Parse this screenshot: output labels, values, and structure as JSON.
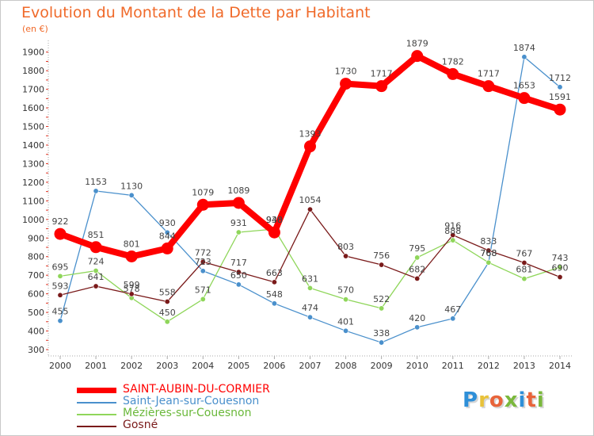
{
  "title": "Evolution du Montant de la Dette par Habitant",
  "unit": "(en €)",
  "logo": {
    "text": "Proxiti",
    "colors": [
      "#2e8fd8",
      "#e8c23a",
      "#e8643a",
      "#7ab83c",
      "#2e8fd8",
      "#e8643a",
      "#7ab83c"
    ]
  },
  "chart_data": {
    "type": "line",
    "title": "Evolution du Montant de la Dette par Habitant",
    "ylabel": "(en €)",
    "xlabel": "",
    "x": [
      "2000",
      "2001",
      "2002",
      "2003",
      "2004",
      "2005",
      "2006",
      "2007",
      "2008",
      "2009",
      "2010",
      "2011",
      "2012",
      "2013",
      "2014"
    ],
    "y_ticks": [
      300,
      400,
      500,
      600,
      700,
      800,
      900,
      1000,
      1100,
      1200,
      1300,
      1400,
      1500,
      1600,
      1700,
      1800,
      1900
    ],
    "ylim": [
      300,
      1950
    ],
    "grid": false,
    "legend_position": "bottom-left",
    "series": [
      {
        "name": "SAINT-AUBIN-DU-CORMIER",
        "color": "#ff0000",
        "emphasis": true,
        "values": [
          922,
          851,
          801,
          844,
          1079,
          1089,
          930,
          1393,
          1730,
          1717,
          1879,
          1782,
          1717,
          1653,
          1591
        ],
        "labels": [
          "922",
          "851",
          "801",
          "844",
          "1079",
          "1089",
          "930",
          "1393",
          "1730",
          "1717",
          "1879",
          "1782",
          "1717",
          "1653",
          "1591"
        ]
      },
      {
        "name": "Saint-Jean-sur-Couesnon",
        "color": "#4a90cc",
        "emphasis": false,
        "values": [
          455,
          1153,
          1130,
          930,
          723,
          650,
          548,
          474,
          401,
          338,
          420,
          467,
          768,
          1874,
          1712
        ],
        "labels": [
          "455",
          "1153",
          "1130",
          "930",
          "723",
          "650",
          "548",
          "474",
          "401",
          "338",
          "420",
          "467",
          "768",
          "1874",
          "1712"
        ]
      },
      {
        "name": "Mézières-sur-Couesnon",
        "color": "#8fd65a",
        "emphasis": false,
        "values": [
          695,
          724,
          578,
          450,
          571,
          931,
          948,
          631,
          570,
          522,
          795,
          888,
          768,
          681,
          743
        ],
        "labels": [
          "695",
          "724",
          "578",
          "450",
          "571",
          "931",
          "948",
          "631",
          "570",
          "522",
          "795",
          "888",
          "768",
          "681",
          "743"
        ]
      },
      {
        "name": "Gosné",
        "color": "#7a1a1a",
        "emphasis": false,
        "values": [
          593,
          641,
          599,
          558,
          772,
          717,
          663,
          1054,
          803,
          756,
          682,
          916,
          833,
          767,
          690
        ],
        "labels": [
          "593",
          "641",
          "599",
          "558",
          "772",
          "717",
          "663",
          "1054",
          "803",
          "756",
          "682",
          "916",
          "833",
          "767",
          "690"
        ]
      }
    ]
  }
}
